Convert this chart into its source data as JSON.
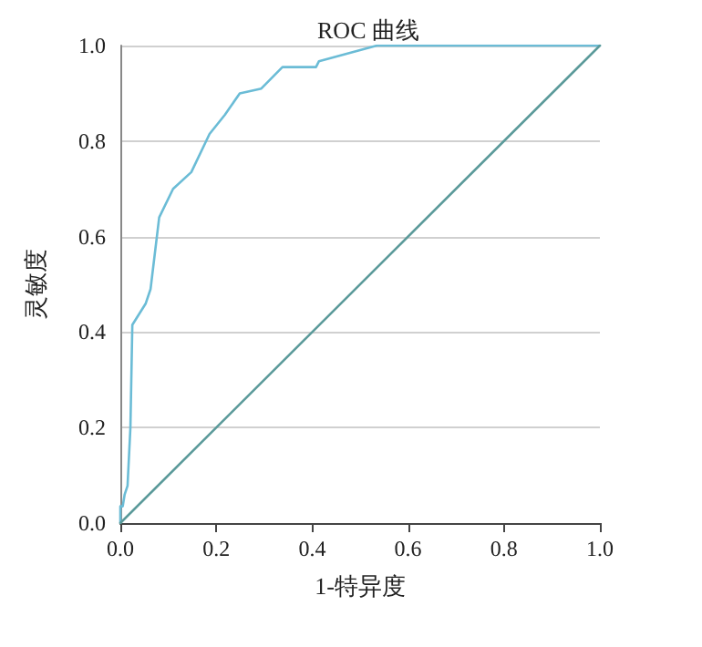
{
  "chart_data": {
    "type": "line",
    "title": "ROC 曲线",
    "xlabel": "1-特异度",
    "ylabel": "灵敏度",
    "series": [
      {
        "color": "#6bbcd6",
        "x": [
          0,
          0,
          0.005,
          0.009,
          0.015,
          0.021,
          0.025,
          0.053,
          0.063,
          0.081,
          0.11,
          0.148,
          0.186,
          0.218,
          0.249,
          0.294,
          0.338,
          0.408,
          0.414,
          0.535,
          1
        ],
        "values": [
          0,
          0.035,
          0.035,
          0.06,
          0.078,
          0.2,
          0.415,
          0.46,
          0.49,
          0.64,
          0.7,
          0.735,
          0.815,
          0.855,
          0.9,
          0.91,
          0.955,
          0.955,
          0.967,
          1,
          1
        ]
      },
      {
        "color": "#5b9a9a",
        "x": [
          0,
          1
        ],
        "values": [
          0,
          1
        ]
      }
    ],
    "xlim": [
      0,
      1
    ],
    "ylim": [
      0,
      1
    ],
    "xticks": [
      {
        "value": 0,
        "label": "0.0"
      },
      0.2,
      0.4,
      0.6,
      0.8,
      {
        "value": 1,
        "label": "1.0"
      }
    ],
    "yticks": [
      {
        "value": 0,
        "label": "0.0"
      },
      0.2,
      0.4,
      0.6,
      0.8,
      {
        "value": 1,
        "label": "1.0"
      }
    ],
    "grid": "y",
    "marker": "none"
  }
}
